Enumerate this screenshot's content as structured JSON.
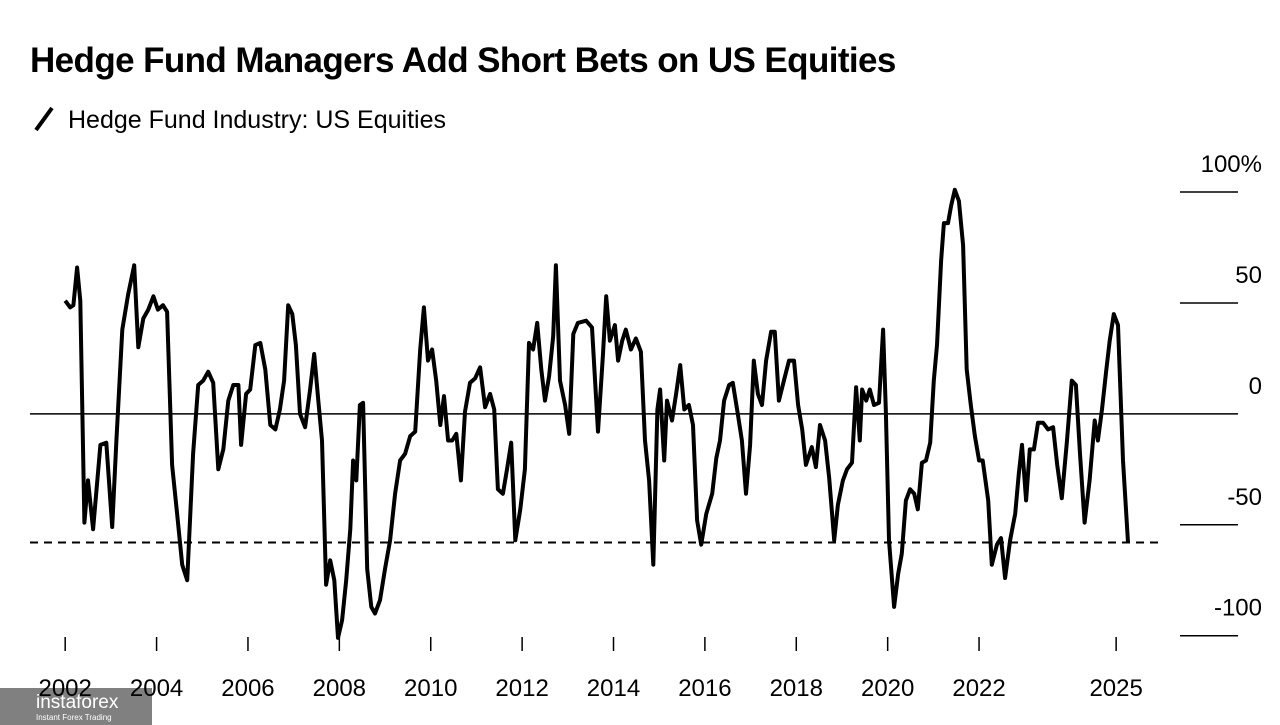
{
  "chart_data": {
    "type": "line",
    "title": "Hedge Fund Managers Add Short Bets on US Equities",
    "x": [
      2002.0,
      2002.11,
      2002.18,
      2002.26,
      2002.33,
      2002.42,
      2002.5,
      2002.61,
      2002.77,
      2002.9,
      2003.03,
      2003.12,
      2003.25,
      2003.38,
      2003.51,
      2003.6,
      2003.71,
      2003.82,
      2003.93,
      2004.03,
      2004.14,
      2004.23,
      2004.34,
      2004.45,
      2004.56,
      2004.67,
      2004.8,
      2004.91,
      2005.02,
      2005.13,
      2005.24,
      2005.35,
      2005.46,
      2005.57,
      2005.68,
      2005.79,
      2005.85,
      2005.96,
      2006.05,
      2006.16,
      2006.27,
      2006.38,
      2006.49,
      2006.6,
      2006.7,
      2006.79,
      2006.88,
      2006.97,
      2007.05,
      2007.14,
      2007.25,
      2007.36,
      2007.45,
      2007.54,
      2007.62,
      2007.71,
      2007.8,
      2007.89,
      2007.97,
      2008.06,
      2008.15,
      2008.24,
      2008.3,
      2008.37,
      2008.45,
      2008.52,
      2008.61,
      2008.7,
      2008.78,
      2008.89,
      2009.0,
      2009.11,
      2009.22,
      2009.33,
      2009.44,
      2009.55,
      2009.66,
      2009.77,
      2009.85,
      2009.94,
      2010.03,
      2010.12,
      2010.21,
      2010.29,
      2010.38,
      2010.47,
      2010.56,
      2010.66,
      2010.75,
      2010.86,
      2010.97,
      2011.08,
      2011.19,
      2011.3,
      2011.39,
      2011.47,
      2011.58,
      2011.67,
      2011.76,
      2011.85,
      2011.96,
      2012.06,
      2012.15,
      2012.24,
      2012.33,
      2012.42,
      2012.5,
      2012.59,
      2012.68,
      2012.74,
      2012.83,
      2012.94,
      2013.03,
      2013.12,
      2013.22,
      2013.4,
      2013.53,
      2013.66,
      2013.77,
      2013.84,
      2013.92,
      2014.03,
      2014.1,
      2014.19,
      2014.27,
      2014.38,
      2014.49,
      2014.6,
      2014.69,
      2014.78,
      2014.87,
      2014.96,
      2015.02,
      2015.11,
      2015.17,
      2015.28,
      2015.37,
      2015.46,
      2015.55,
      2015.65,
      2015.74,
      2015.83,
      2015.92,
      2016.03,
      2016.16,
      2016.25,
      2016.33,
      2016.42,
      2016.53,
      2016.61,
      2016.72,
      2016.81,
      2016.9,
      2016.99,
      2017.07,
      2017.16,
      2017.25,
      2017.34,
      2017.45,
      2017.53,
      2017.62,
      2017.73,
      2017.84,
      2017.95,
      2018.04,
      2018.13,
      2018.21,
      2018.34,
      2018.43,
      2018.52,
      2018.63,
      2018.72,
      2018.83,
      2018.91,
      2019.02,
      2019.11,
      2019.22,
      2019.31,
      2019.39,
      2019.44,
      2019.53,
      2019.61,
      2019.7,
      2019.81,
      2019.9,
      2019.96,
      2020.03,
      2020.14,
      2020.23,
      2020.31,
      2020.4,
      2020.49,
      2020.58,
      2020.66,
      2020.75,
      2020.84,
      2020.93,
      2021.01,
      2021.08,
      2021.17,
      2021.23,
      2021.32,
      2021.39,
      2021.47,
      2021.56,
      2021.65,
      2021.73,
      2021.82,
      2021.91,
      2022.0,
      2022.08,
      2022.2,
      2022.28,
      2022.39,
      2022.48,
      2022.57,
      2022.68,
      2022.79,
      2022.87,
      2022.94,
      2023.03,
      2023.11,
      2023.2,
      2023.29,
      2023.4,
      2023.51,
      2023.62,
      2023.71,
      2023.81,
      2023.92,
      2024.03,
      2024.12,
      2024.21,
      2024.31,
      2024.42,
      2024.53,
      2024.6,
      2024.69,
      2024.78,
      2024.86,
      2024.95,
      2025.04,
      2025.15,
      2025.26
    ],
    "series": [
      {
        "name": "Hedge Fund Industry: US Equities",
        "color": "#000000",
        "values": [
          51,
          48,
          49,
          66,
          51,
          -49,
          -30,
          -52,
          -14,
          -13,
          -51,
          -12,
          38,
          54,
          67,
          30,
          43,
          47,
          53,
          47,
          49,
          46,
          -23,
          -45,
          -68,
          -75,
          -18,
          13,
          15,
          19,
          14,
          -25,
          -16,
          6,
          13,
          13,
          -14,
          9,
          11,
          31,
          32,
          20,
          -5,
          -7,
          2,
          15,
          49,
          45,
          31,
          0,
          -6,
          11,
          27,
          6,
          -12,
          -77,
          -66,
          -75,
          -101,
          -93,
          -75,
          -52,
          -21,
          -30,
          4,
          5,
          -70,
          -87,
          -90,
          -84,
          -70,
          -57,
          -36,
          -21,
          -18,
          -10,
          -8,
          29,
          48,
          24,
          29,
          15,
          -5,
          8,
          -12,
          -12,
          -9,
          -30,
          1,
          14,
          16,
          21,
          3,
          9,
          2,
          -34,
          -36,
          -25,
          -13,
          -57,
          -43,
          -25,
          32,
          29,
          41,
          20,
          6,
          17,
          35,
          67,
          15,
          4,
          -9,
          36,
          41,
          42,
          39,
          -8,
          27,
          53,
          33,
          40,
          24,
          33,
          38,
          29,
          34,
          28,
          -12,
          -30,
          -68,
          2,
          11,
          -21,
          6,
          -3,
          9,
          22,
          2,
          4,
          -5,
          -48,
          -59,
          -45,
          -36,
          -20,
          -12,
          6,
          13,
          14,
          0,
          -12,
          -36,
          -14,
          24,
          9,
          4,
          24,
          37,
          37,
          6,
          15,
          24,
          24,
          4,
          -7,
          -23,
          -15,
          -24,
          -5,
          -12,
          -29,
          -57,
          -41,
          -30,
          -25,
          -22,
          12,
          -12,
          11,
          6,
          11,
          4,
          5,
          38,
          2,
          -57,
          -87,
          -72,
          -63,
          -39,
          -34,
          -36,
          -43,
          -22,
          -21,
          -13,
          15,
          31,
          69,
          86,
          86,
          94,
          101,
          96,
          76,
          20,
          4,
          -10,
          -21,
          -21,
          -39,
          -68,
          -59,
          -56,
          -74,
          -57,
          -45,
          -27,
          -14,
          -39,
          -16,
          -16,
          -4,
          -4,
          -7,
          -6,
          -23,
          -38,
          -13,
          15,
          13,
          -18,
          -49,
          -30,
          -3,
          -12,
          2,
          19,
          33,
          45,
          40,
          -21,
          -58
        ]
      }
    ],
    "xlim": [
      2001.23,
      2025.96
    ],
    "xticks": [
      2002,
      2004,
      2006,
      2008,
      2010,
      2012,
      2014,
      2016,
      2018,
      2020,
      2022,
      2025
    ],
    "ylim": [
      -106,
      114
    ],
    "yticks": [
      {
        "value": 100,
        "label": "100%"
      },
      50,
      0,
      -50,
      -100
    ],
    "reference_line": -58
  },
  "watermark": {
    "name": "instaforex",
    "tagline": "Instant Forex Trading"
  }
}
